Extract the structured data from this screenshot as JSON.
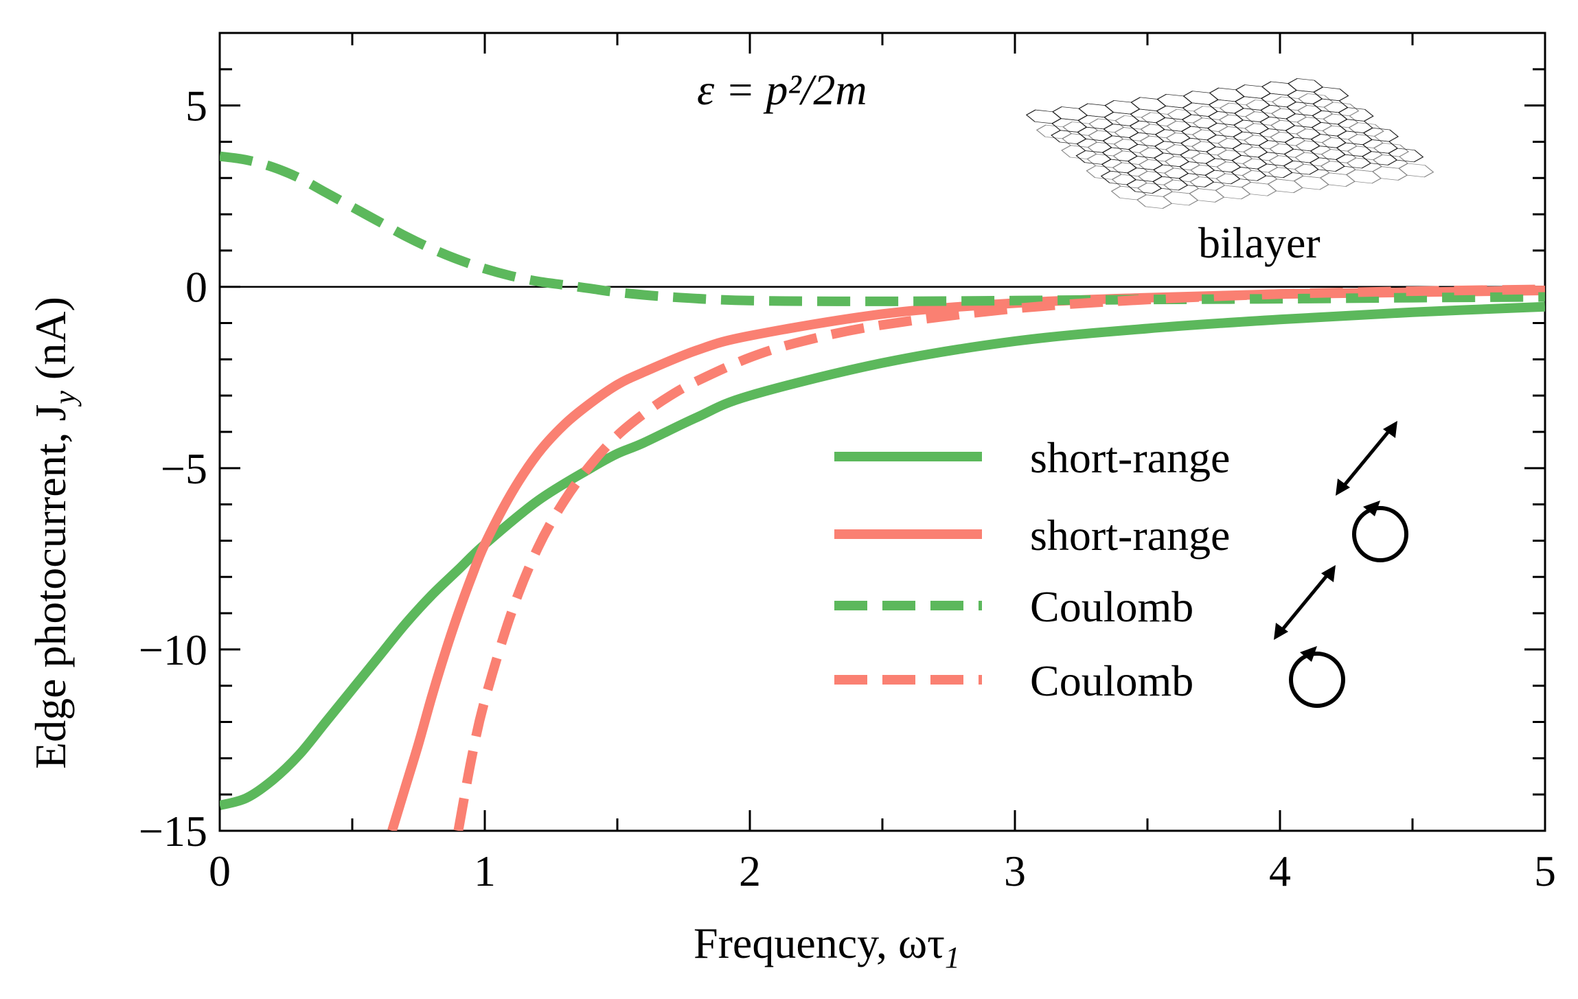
{
  "chart_data": {
    "type": "line",
    "xlabel": "Frequency, ωτ",
    "xlabel_sub": "1",
    "ylabel": "Edge photocurrent,  J",
    "ylabel_sub": "y",
    "ylabel_unit": " (nA)",
    "xlim": [
      0,
      5
    ],
    "ylim": [
      -15,
      7
    ],
    "xticks": [
      0,
      1,
      2,
      3,
      4,
      5
    ],
    "yticks": [
      -15,
      -10,
      -5,
      0,
      5
    ],
    "xtick_labels": [
      "0",
      "1",
      "2",
      "3",
      "4",
      "5"
    ],
    "ytick_labels": [
      "−15",
      "−10",
      "−5",
      "0",
      "5"
    ],
    "annotation_formula": "ε = p²/2m",
    "annotation_label": "bilayer",
    "legend_position": "center-right",
    "series": [
      {
        "name": "short-range",
        "color": "#5cb85c",
        "style": "solid",
        "polarization": "linear",
        "x": [
          0,
          0.1,
          0.2,
          0.3,
          0.4,
          0.5,
          0.6,
          0.7,
          0.8,
          0.9,
          1.0,
          1.2,
          1.4,
          1.5,
          1.6,
          1.8,
          2.0,
          2.5,
          3.0,
          3.5,
          4.0,
          4.5,
          5.0
        ],
        "y": [
          -14.3,
          -14.1,
          -13.6,
          -12.9,
          -12.0,
          -11.1,
          -10.2,
          -9.3,
          -8.5,
          -7.8,
          -7.1,
          -5.9,
          -5.0,
          -4.6,
          -4.3,
          -3.6,
          -3.0,
          -2.1,
          -1.5,
          -1.15,
          -0.9,
          -0.7,
          -0.55
        ]
      },
      {
        "name": "short-range",
        "color": "#fa8072",
        "style": "solid",
        "polarization": "circular",
        "x": [
          0.65,
          0.7,
          0.75,
          0.8,
          0.85,
          0.9,
          0.95,
          1.0,
          1.1,
          1.2,
          1.3,
          1.4,
          1.5,
          1.6,
          1.8,
          2.0,
          2.5,
          3.0,
          3.5,
          4.0,
          4.5,
          5.0
        ],
        "y": [
          -15.0,
          -13.8,
          -12.6,
          -11.3,
          -10.1,
          -9.0,
          -8.0,
          -7.1,
          -5.7,
          -4.6,
          -3.8,
          -3.2,
          -2.7,
          -2.35,
          -1.75,
          -1.35,
          -0.75,
          -0.45,
          -0.3,
          -0.2,
          -0.15,
          -0.1
        ]
      },
      {
        "name": "Coulomb",
        "color": "#5cb85c",
        "style": "dashed",
        "polarization": "linear",
        "x": [
          0,
          0.1,
          0.2,
          0.3,
          0.4,
          0.5,
          0.6,
          0.7,
          0.8,
          0.9,
          1.0,
          1.1,
          1.2,
          1.3,
          1.4,
          1.5,
          1.7,
          2.0,
          2.5,
          3.0,
          3.5,
          4.0,
          4.5,
          5.0
        ],
        "y": [
          3.6,
          3.5,
          3.3,
          3.0,
          2.6,
          2.2,
          1.8,
          1.4,
          1.05,
          0.75,
          0.5,
          0.3,
          0.15,
          0.05,
          -0.05,
          -0.15,
          -0.28,
          -0.38,
          -0.4,
          -0.38,
          -0.35,
          -0.33,
          -0.3,
          -0.28
        ]
      },
      {
        "name": "Coulomb",
        "color": "#fa8072",
        "style": "dashed",
        "polarization": "circular",
        "x": [
          0.9,
          0.95,
          1.0,
          1.1,
          1.2,
          1.3,
          1.4,
          1.5,
          1.6,
          1.7,
          1.8,
          2.0,
          2.2,
          2.5,
          3.0,
          3.5,
          4.0,
          4.5,
          5.0
        ],
        "y": [
          -15.0,
          -13.0,
          -11.4,
          -9.0,
          -7.2,
          -5.9,
          -4.9,
          -4.1,
          -3.5,
          -3.0,
          -2.6,
          -1.95,
          -1.5,
          -1.05,
          -0.6,
          -0.35,
          -0.2,
          -0.12,
          -0.07
        ]
      }
    ]
  },
  "legend": {
    "entries": [
      {
        "label": "short-range"
      },
      {
        "label": "short-range"
      },
      {
        "label": "Coulomb"
      },
      {
        "label": "Coulomb"
      }
    ]
  },
  "icons": {
    "linear_polarization": "double-arrow-icon",
    "circular_polarization": "circular-arrow-icon",
    "lattice": "bilayer-graphene-lattice-icon"
  }
}
